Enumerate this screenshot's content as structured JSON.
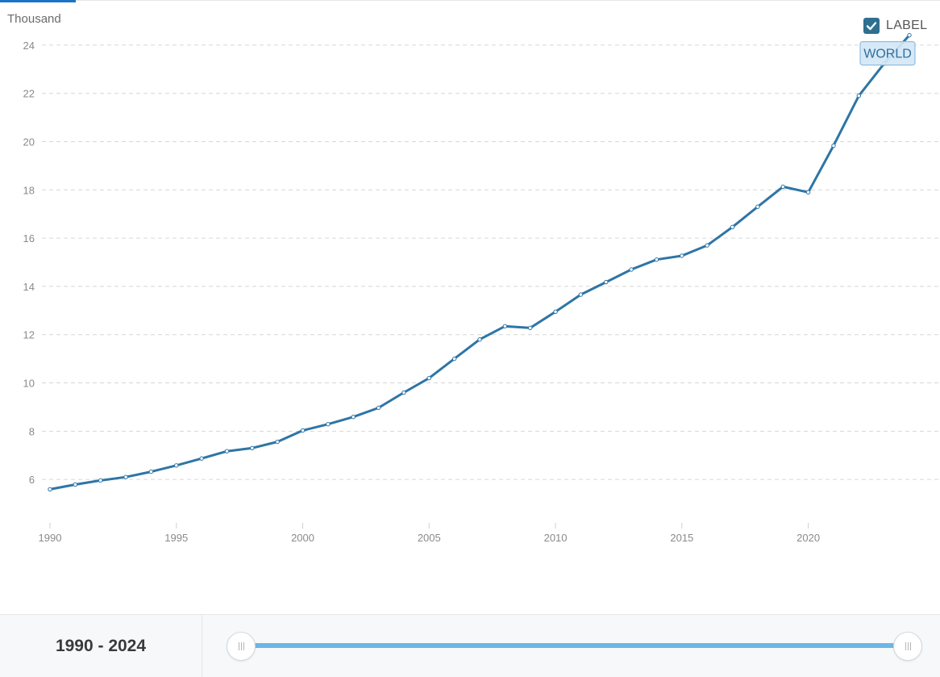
{
  "unit_label": "Thousand",
  "label_toggle": {
    "text": "LABEL",
    "checked": true
  },
  "range": {
    "label": "1990 - 2024",
    "start": 1990,
    "end": 2024
  },
  "colors": {
    "line": "#2e75a6",
    "grid": "#d6d6d6",
    "tag_bg": "#d4e7f5",
    "tag_border": "#8fbde0"
  },
  "chart_data": {
    "type": "line",
    "title": "",
    "xlabel": "",
    "ylabel": "Thousand",
    "xlim": [
      1990,
      2024
    ],
    "ylim": [
      4.2,
      25.2
    ],
    "yticks": [
      6,
      8,
      10,
      12,
      14,
      16,
      18,
      20,
      22,
      24
    ],
    "xticks": [
      1990,
      1995,
      2000,
      2005,
      2010,
      2015,
      2020
    ],
    "grid": true,
    "series": [
      {
        "name": "WORLD",
        "x": [
          1990,
          1991,
          1992,
          1993,
          1994,
          1995,
          1996,
          1997,
          1998,
          1999,
          2000,
          2001,
          2002,
          2003,
          2004,
          2005,
          2006,
          2007,
          2008,
          2009,
          2010,
          2011,
          2012,
          2013,
          2014,
          2015,
          2016,
          2017,
          2018,
          2019,
          2020,
          2021,
          2022,
          2023,
          2024
        ],
        "y": [
          5.59,
          5.79,
          5.96,
          6.1,
          6.32,
          6.58,
          6.87,
          7.17,
          7.3,
          7.56,
          8.03,
          8.29,
          8.59,
          8.97,
          9.6,
          10.2,
          11.0,
          11.8,
          12.35,
          12.28,
          12.95,
          13.66,
          14.18,
          14.7,
          15.11,
          15.27,
          15.7,
          16.46,
          17.3,
          18.13,
          17.9,
          19.83,
          21.9,
          23.23,
          24.41
        ]
      }
    ]
  }
}
